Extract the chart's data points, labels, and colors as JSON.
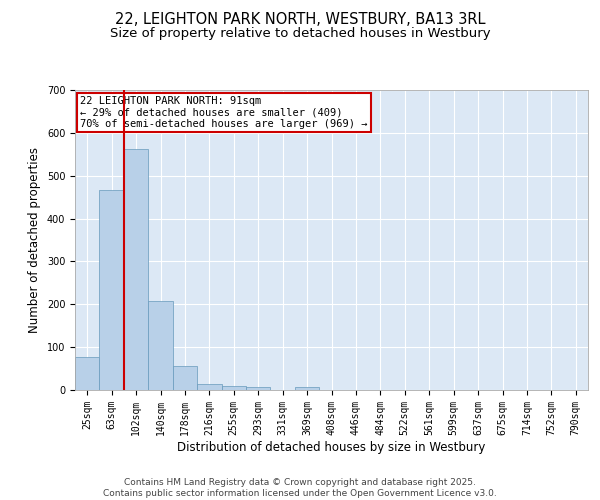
{
  "title_line1": "22, LEIGHTON PARK NORTH, WESTBURY, BA13 3RL",
  "title_line2": "Size of property relative to detached houses in Westbury",
  "xlabel": "Distribution of detached houses by size in Westbury",
  "ylabel": "Number of detached properties",
  "categories": [
    "25sqm",
    "63sqm",
    "102sqm",
    "140sqm",
    "178sqm",
    "216sqm",
    "255sqm",
    "293sqm",
    "331sqm",
    "369sqm",
    "408sqm",
    "446sqm",
    "484sqm",
    "522sqm",
    "561sqm",
    "599sqm",
    "637sqm",
    "675sqm",
    "714sqm",
    "752sqm",
    "790sqm"
  ],
  "values": [
    78,
    467,
    562,
    208,
    55,
    14,
    9,
    8,
    0,
    8,
    0,
    0,
    0,
    0,
    0,
    0,
    0,
    0,
    0,
    0,
    0
  ],
  "bar_color": "#b8d0e8",
  "bar_edge_color": "#6699bb",
  "bg_color": "#dce8f5",
  "grid_color": "#ffffff",
  "vline_color": "#cc0000",
  "annotation_text": "22 LEIGHTON PARK NORTH: 91sqm\n← 29% of detached houses are smaller (409)\n70% of semi-detached houses are larger (969) →",
  "annotation_box_color": "#cc0000",
  "ylim": [
    0,
    700
  ],
  "yticks": [
    0,
    100,
    200,
    300,
    400,
    500,
    600,
    700
  ],
  "footer_line1": "Contains HM Land Registry data © Crown copyright and database right 2025.",
  "footer_line2": "Contains public sector information licensed under the Open Government Licence v3.0.",
  "title_fontsize": 10.5,
  "subtitle_fontsize": 9.5,
  "label_fontsize": 8.5,
  "tick_fontsize": 7,
  "annotation_fontsize": 7.5,
  "footer_fontsize": 6.5
}
